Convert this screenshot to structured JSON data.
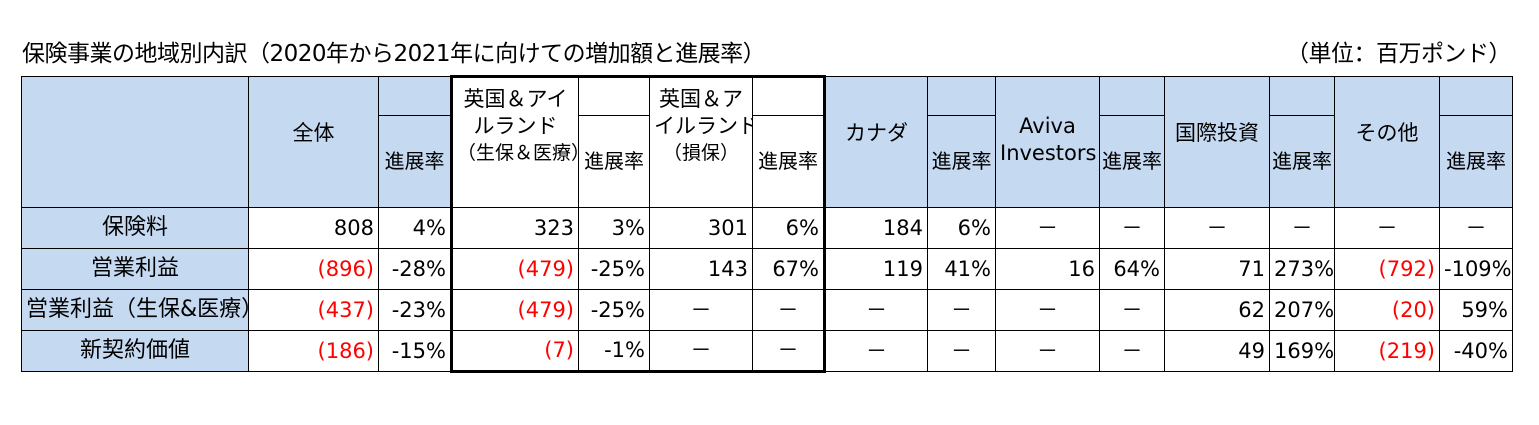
{
  "title": "保険事業の地域別内訳（2020年から2021年に向けての増加額と進展率）",
  "unit": "（単位：百万ポンド）",
  "headers": {
    "total": "全体",
    "uk_life_l1": "英国＆アイ",
    "uk_life_l2": "ルランド",
    "uk_life_l3": "（生保＆医療）",
    "uk_gi_l1": "英国＆ア",
    "uk_gi_l2": "イルランド",
    "uk_gi_l3": "（損保）",
    "canada": "カナダ",
    "aviva_l1": "Aviva",
    "aviva_l2": "Investors",
    "intl": "国際投資",
    "other": "その他",
    "rate": "進展率"
  },
  "rows": [
    {
      "label": "保険料",
      "c1": "808",
      "c2": "4%",
      "c3": "323",
      "c4": "3%",
      "c5": "301",
      "c6": "6%",
      "c7": "184",
      "c8": "6%",
      "c9": "－",
      "c10": "－",
      "c11": "－",
      "c12": "－",
      "c13": "－",
      "c14": "－"
    },
    {
      "label": "営業利益",
      "c1": "(896)",
      "c2": "-28%",
      "c3": "(479)",
      "c4": "-25%",
      "c5": "143",
      "c6": "67%",
      "c7": "119",
      "c8": "41%",
      "c9": "16",
      "c10": "64%",
      "c11": "71",
      "c12": "273%",
      "c13": "(792)",
      "c14": "-109%"
    },
    {
      "label": "営業利益（生保&医療）",
      "c1": "(437)",
      "c2": "-23%",
      "c3": "(479)",
      "c4": "-25%",
      "c5": "－",
      "c6": "－",
      "c7": "－",
      "c8": "－",
      "c9": "－",
      "c10": "－",
      "c11": "62",
      "c12": "207%",
      "c13": "(20)",
      "c14": "59%"
    },
    {
      "label": "新契約価値",
      "c1": "(186)",
      "c2": "-15%",
      "c3": "(7)",
      "c4": "-1%",
      "c5": "－",
      "c6": "－",
      "c7": "－",
      "c8": "－",
      "c9": "－",
      "c10": "－",
      "c11": "49",
      "c12": "169%",
      "c13": "(219)",
      "c14": "-40%"
    }
  ],
  "colors": {
    "header_bg": "#c5d9f1",
    "negative": "#ff0000"
  }
}
